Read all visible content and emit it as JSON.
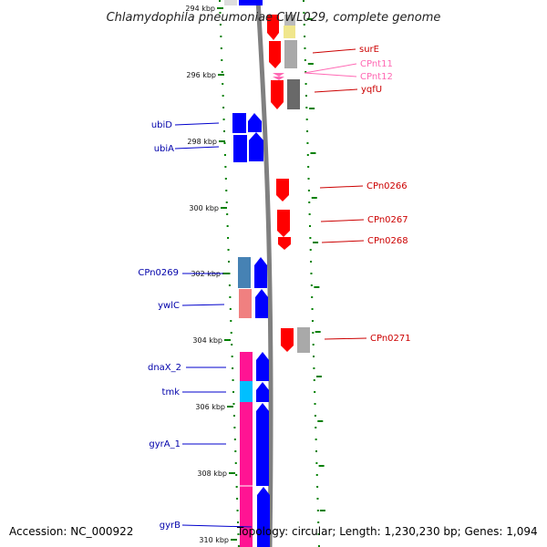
{
  "title": "Chlamydophila pneumoniae CWL029, complete genome",
  "footer": {
    "accession": "Accession: NC_000922",
    "topology": "Topology: circular; Length: 1,230,230 bp; Genes: 1,094"
  },
  "colors": {
    "forward_cds": "#0000ff",
    "reverse_cds": "#ff0000",
    "magenta_block": "#ff1493",
    "cyan_block": "#00bfff",
    "steelblue_block": "#4682b4",
    "salmon_block": "#f08080",
    "gray_block": "#a9a9a9",
    "darkgray_block": "#696969",
    "backbone": "#808080",
    "tick": "#008000"
  },
  "scale": {
    "ticks": [
      "294 kbp",
      "296 kbp",
      "298 kbp",
      "300 kbp",
      "302 kbp",
      "304 kbp",
      "306 kbp",
      "308 kbp",
      "310 kbp"
    ]
  },
  "genes": {
    "left": [
      {
        "name": "ubiD",
        "color": "#0000aa"
      },
      {
        "name": "ubiA",
        "color": "#0000aa"
      },
      {
        "name": "CPn0269",
        "color": "#0000aa"
      },
      {
        "name": "ywlC",
        "color": "#0000aa"
      },
      {
        "name": "dnaX_2",
        "color": "#0000aa"
      },
      {
        "name": "tmk",
        "color": "#0000aa"
      },
      {
        "name": "gyrA_1",
        "color": "#0000aa"
      },
      {
        "name": "gyrB",
        "color": "#0000aa"
      }
    ],
    "right": [
      {
        "name": "surE",
        "color": "#cc0000"
      },
      {
        "name": "CPnt11",
        "color": "#ff69b4"
      },
      {
        "name": "CPnt12",
        "color": "#ff69b4"
      },
      {
        "name": "yqfU",
        "color": "#cc0000"
      },
      {
        "name": "CPn0266",
        "color": "#cc0000"
      },
      {
        "name": "CPn0267",
        "color": "#cc0000"
      },
      {
        "name": "CPn0268",
        "color": "#cc0000"
      },
      {
        "name": "CPn0271",
        "color": "#cc0000"
      }
    ]
  }
}
